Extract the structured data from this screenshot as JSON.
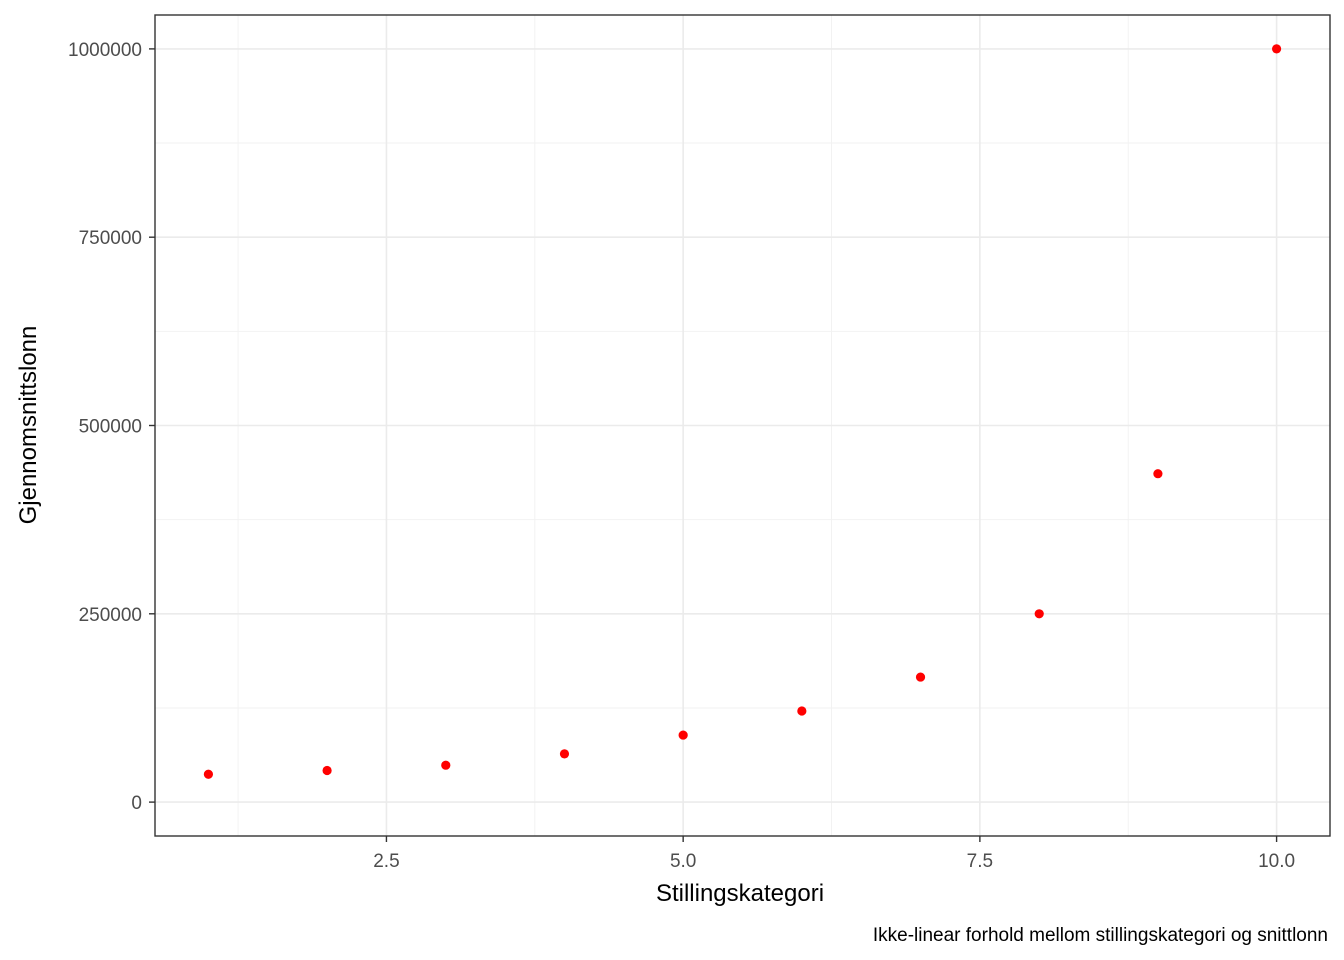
{
  "chart_data": {
    "type": "scatter",
    "title": "",
    "xlabel": "Stillingskategori",
    "ylabel": "Gjennomsnittslonn",
    "caption": "Ikke-linear forhold mellom stillingskategori og snittlonn",
    "xlim": [
      0.55,
      10.45
    ],
    "ylim": [
      -45000,
      1045000
    ],
    "x_ticks": [
      2.5,
      5.0,
      7.5,
      10.0
    ],
    "x_tick_labels": [
      "2.5",
      "5.0",
      "7.5",
      "10.0"
    ],
    "y_ticks": [
      0,
      250000,
      500000,
      750000,
      1000000
    ],
    "y_tick_labels": [
      "0",
      "250000",
      "500000",
      "750000",
      "1000000"
    ],
    "grid": true,
    "series": [
      {
        "color": "#ff0000",
        "points": [
          {
            "x": 1,
            "y": 37000
          },
          {
            "x": 2,
            "y": 42000
          },
          {
            "x": 3,
            "y": 49000
          },
          {
            "x": 4,
            "y": 64000
          },
          {
            "x": 5,
            "y": 89000
          },
          {
            "x": 6,
            "y": 121000
          },
          {
            "x": 7,
            "y": 166000
          },
          {
            "x": 8,
            "y": 250000
          },
          {
            "x": 9,
            "y": 436000
          },
          {
            "x": 10,
            "y": 1000000
          }
        ]
      }
    ]
  }
}
